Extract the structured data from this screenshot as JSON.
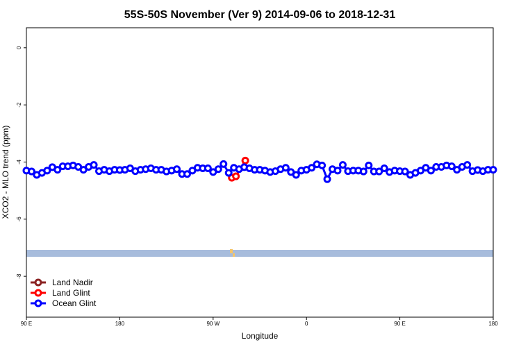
{
  "chart_data": {
    "type": "line",
    "title": "55S-50S November (Ver 9)   2014-09-06 to 2018-12-31",
    "x_label": "Longitude",
    "y_label": "XCO2 - MLO trend (ppm)",
    "xlim": [
      90,
      540
    ],
    "ylim": [
      -9.43,
      0.7
    ],
    "xticks": [
      {
        "value": 90,
        "label": "90 E"
      },
      180,
      {
        "value": 270,
        "label": "90 W"
      },
      {
        "value": 360,
        "label": "0"
      },
      {
        "value": 450,
        "label": "90 E"
      },
      {
        "value": 540,
        "label": "180"
      }
    ],
    "yticks": [
      0,
      -2,
      -4,
      -6,
      -8
    ],
    "legend": "bottom-left",
    "series": [
      {
        "name": "Land Nadir",
        "color": "#8b2323",
        "x": [],
        "values": []
      },
      {
        "name": "Land Glint",
        "color": "#ff0000",
        "x": [
          288,
          292,
          301
        ],
        "values": [
          -4.55,
          -4.5,
          -3.95
        ]
      },
      {
        "name": "Ocean Glint",
        "color": "#0000ff",
        "x": [
          90,
          95,
          100,
          105,
          110,
          115,
          120,
          125,
          130,
          135,
          140,
          145,
          150,
          155,
          160,
          165,
          170,
          175,
          180,
          185,
          190,
          195,
          200,
          205,
          210,
          215,
          220,
          225,
          230,
          235,
          240,
          245,
          250,
          255,
          260,
          265,
          270,
          275,
          280,
          285,
          290,
          295,
          300,
          305,
          310,
          315,
          320,
          325,
          330,
          335,
          340,
          345,
          350,
          355,
          360,
          365,
          370,
          375,
          380,
          385,
          390,
          395,
          400,
          405,
          410,
          415,
          420,
          425,
          430,
          435,
          440,
          445,
          450,
          455,
          460,
          465,
          470,
          475,
          480,
          485,
          490,
          495,
          500,
          505,
          510,
          515,
          520,
          525,
          530,
          535,
          540
        ],
        "values": [
          -4.3,
          -4.33,
          -4.45,
          -4.38,
          -4.3,
          -4.18,
          -4.27,
          -4.15,
          -4.15,
          -4.12,
          -4.17,
          -4.27,
          -4.17,
          -4.1,
          -4.32,
          -4.27,
          -4.32,
          -4.27,
          -4.28,
          -4.27,
          -4.22,
          -4.32,
          -4.27,
          -4.25,
          -4.22,
          -4.27,
          -4.27,
          -4.33,
          -4.3,
          -4.25,
          -4.42,
          -4.42,
          -4.3,
          -4.2,
          -4.22,
          -4.22,
          -4.35,
          -4.25,
          -4.07,
          -4.38,
          -4.2,
          -4.25,
          -4.18,
          -4.22,
          -4.27,
          -4.27,
          -4.3,
          -4.35,
          -4.32,
          -4.25,
          -4.2,
          -4.35,
          -4.45,
          -4.3,
          -4.27,
          -4.2,
          -4.08,
          -4.12,
          -4.6,
          -4.25,
          -4.3,
          -4.1,
          -4.32,
          -4.3,
          -4.3,
          -4.33,
          -4.12,
          -4.33,
          -4.33,
          -4.22,
          -4.35,
          -4.3,
          -4.32,
          -4.33,
          -4.45,
          -4.38,
          -4.3,
          -4.2,
          -4.3,
          -4.17,
          -4.17,
          -4.12,
          -4.15,
          -4.27,
          -4.17,
          -4.1,
          -4.32,
          -4.28,
          -4.32,
          -4.27,
          -4.27
        ]
      }
    ]
  }
}
